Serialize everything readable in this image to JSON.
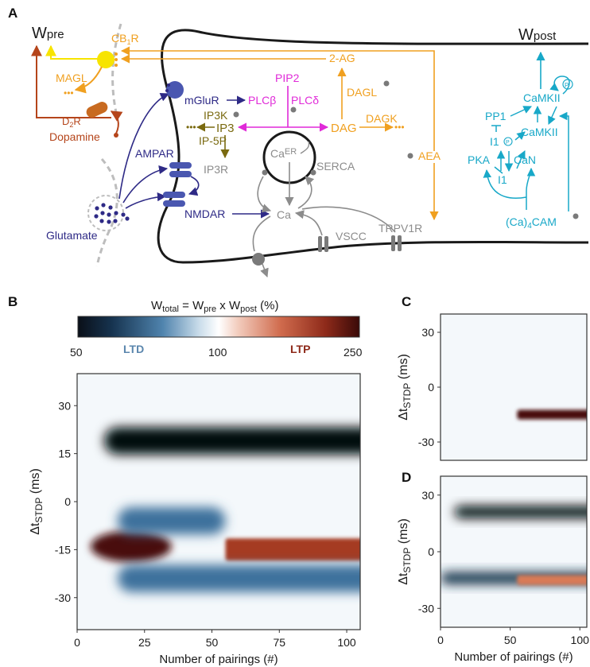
{
  "panel_labels": {
    "a": "A",
    "b": "B",
    "c": "C",
    "d": "D"
  },
  "colors": {
    "membrane": "#1a1a1a",
    "endocannabinoid": "#f0a020",
    "cb1r": "#f7e400",
    "dopamine": "#b5451b",
    "glutamate": "#2e2a86",
    "pip2": "#e02ad8",
    "ip3": "#7a6a10",
    "calcium": "#8c8c8c",
    "camkii": "#18a8c8",
    "ltd": "#0d2a4a",
    "ltp": "#6a1410"
  },
  "panel_a": {
    "w_pre": {
      "main": "W",
      "sub": "pre"
    },
    "w_post": {
      "main": "W",
      "sub": "post"
    },
    "cb1r": {
      "main": "CB",
      "sub": "1",
      "suffix": "R"
    },
    "magl": "MAGL",
    "d2r": {
      "main": "D",
      "sub": "2",
      "suffix": "R"
    },
    "dopamine": "Dopamine",
    "glutamate": "Glutamate",
    "mglur": "mGluR",
    "ampar": "AMPAR",
    "nmdar": "NMDAR",
    "pip2": "PIP2",
    "plcb": "PLCβ",
    "plcd": "PLCδ",
    "ip3k": "IP3K",
    "ip3": "IP3",
    "ip5p": "IP-5P",
    "ip3r": "IP3R",
    "ca_er": {
      "main": "Ca",
      "sub": "ER"
    },
    "serca": "SERCA",
    "ca": "Ca",
    "vscc": "VSCC",
    "trpv1r": "TRPV1R",
    "two_ag": "2-AG",
    "dagl": "DAGL",
    "dag": "DAG",
    "dagk": "DAGK",
    "aea": "AEA",
    "pp1": "PP1",
    "camkii_top": "CaMKII",
    "camkii_mid": "CaMKII",
    "i1p": "I1",
    "pka": "PKA",
    "can": "CaN",
    "i1": "I1",
    "cam": {
      "pre": "(Ca)",
      "sub": "4",
      "post": "CAM"
    },
    "phospho": "P"
  },
  "colorbar": {
    "title_main": "W",
    "title_sub": "total",
    "title_mid": " = W",
    "title_sub2": "pre",
    "title_mid2": " x W",
    "title_sub3": "post",
    "title_end": " (%)",
    "ticks": [
      "50",
      "100",
      "250"
    ],
    "ltd_label": "LTD",
    "ltp_label": "LTP"
  },
  "chart_data": [
    {
      "type": "heatmap",
      "panel": "B",
      "xlabel": "Number of pairings (#)",
      "ylabel": "Δt_STDP (ms)",
      "xticks": [
        "0",
        "25",
        "50",
        "75",
        "100"
      ],
      "yticks": [
        "30",
        "15",
        "0",
        "-15",
        "-30"
      ],
      "xlim": [
        0,
        105
      ],
      "ylim": [
        -40,
        40
      ],
      "color_scale": {
        "min": 50,
        "mid": 100,
        "max": 250
      },
      "features": [
        {
          "kind": "LTD",
          "dt_ms": 19,
          "pairings_from": 10,
          "pairings_to": 105,
          "value": 50
        },
        {
          "kind": "LTP",
          "dt_ms": -14,
          "pairings_from": 5,
          "pairings_to": 35,
          "value": 230
        },
        {
          "kind": "LTP",
          "dt_ms": -15,
          "pairings_from": 55,
          "pairings_to": 105,
          "value": 200
        },
        {
          "kind": "LTD",
          "dt_ms": -24,
          "pairings_from": 15,
          "pairings_to": 105,
          "value": 70
        },
        {
          "kind": "LTD",
          "dt_ms": -6,
          "pairings_from": 15,
          "pairings_to": 55,
          "value": 80
        }
      ]
    },
    {
      "type": "heatmap",
      "panel": "C",
      "xlabel": "",
      "ylabel": "Δt_STDP (ms)",
      "xticks": [],
      "yticks": [
        "30",
        "0",
        "-30"
      ],
      "xlim": [
        0,
        105
      ],
      "ylim": [
        -40,
        40
      ],
      "features": [
        {
          "kind": "LTP",
          "dt_ms": -15,
          "pairings_from": 55,
          "pairings_to": 105,
          "value": 250
        }
      ]
    },
    {
      "type": "heatmap",
      "panel": "D",
      "xlabel": "Number of pairings (#)",
      "ylabel": "Δt_STDP (ms)",
      "xticks": [
        "0",
        "50",
        "100"
      ],
      "yticks": [
        "30",
        "0",
        "-30"
      ],
      "xlim": [
        0,
        105
      ],
      "ylim": [
        -40,
        40
      ],
      "features": [
        {
          "kind": "LTD",
          "dt_ms": 21,
          "pairings_from": 10,
          "pairings_to": 105,
          "value": 50
        },
        {
          "kind": "LTD",
          "dt_ms": -14,
          "pairings_from": 0,
          "pairings_to": 105,
          "value": 60
        },
        {
          "kind": "LTP",
          "dt_ms": -15,
          "pairings_from": 55,
          "pairings_to": 105,
          "value": 170
        }
      ]
    }
  ]
}
